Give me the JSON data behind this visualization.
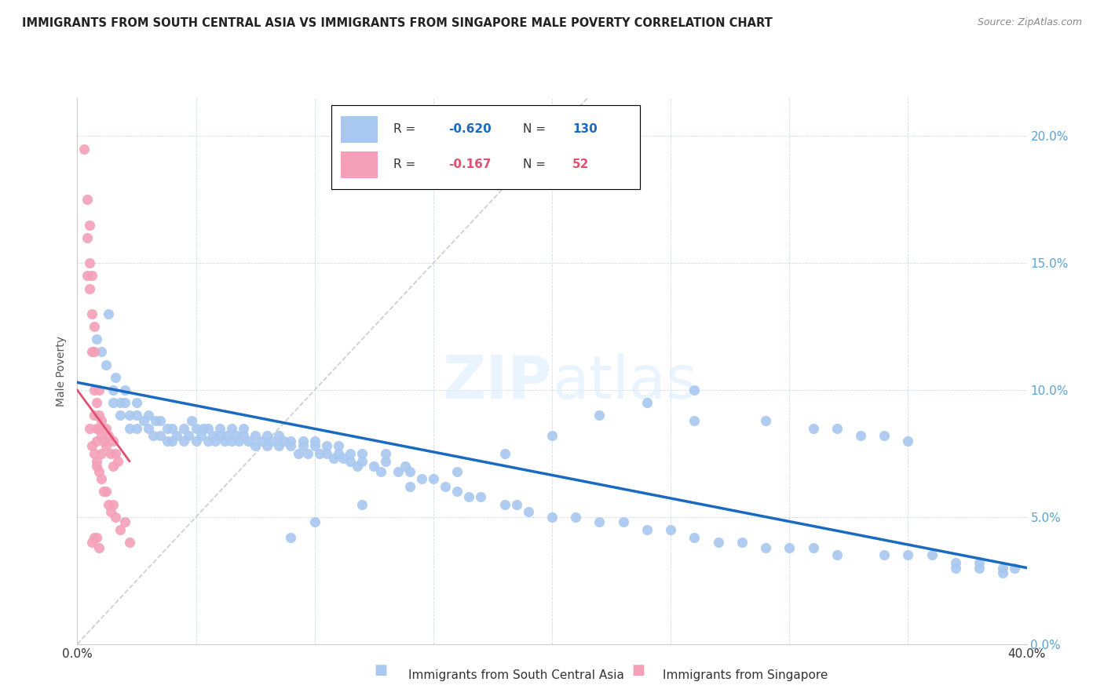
{
  "title": "IMMIGRANTS FROM SOUTH CENTRAL ASIA VS IMMIGRANTS FROM SINGAPORE MALE POVERTY CORRELATION CHART",
  "source": "Source: ZipAtlas.com",
  "ylabel": "Male Poverty",
  "ytick_labels": [
    "20.0%",
    "15.0%",
    "10.0%",
    "5.0%",
    "0.0%"
  ],
  "ytick_values": [
    0.2,
    0.15,
    0.1,
    0.05,
    0.0
  ],
  "xlim": [
    0.0,
    0.4
  ],
  "ylim": [
    0.0,
    0.215
  ],
  "legend_blue_R": "-0.620",
  "legend_blue_N": "130",
  "legend_pink_R": "-0.167",
  "legend_pink_N": "52",
  "blue_color": "#a8c8f0",
  "pink_color": "#f4a0b8",
  "blue_line_color": "#1a6abf",
  "pink_line_color": "#e05070",
  "diagonal_line_color": "#cccccc",
  "watermark_zip": "ZIP",
  "watermark_atlas": "atlas",
  "blue_scatter_x": [
    0.008,
    0.01,
    0.012,
    0.013,
    0.015,
    0.015,
    0.016,
    0.018,
    0.018,
    0.02,
    0.02,
    0.022,
    0.022,
    0.025,
    0.025,
    0.025,
    0.028,
    0.03,
    0.03,
    0.032,
    0.033,
    0.035,
    0.035,
    0.038,
    0.038,
    0.04,
    0.04,
    0.042,
    0.045,
    0.045,
    0.047,
    0.048,
    0.05,
    0.05,
    0.052,
    0.053,
    0.055,
    0.055,
    0.057,
    0.058,
    0.06,
    0.06,
    0.062,
    0.063,
    0.065,
    0.065,
    0.067,
    0.068,
    0.07,
    0.07,
    0.072,
    0.075,
    0.075,
    0.078,
    0.08,
    0.08,
    0.082,
    0.085,
    0.085,
    0.087,
    0.09,
    0.09,
    0.093,
    0.095,
    0.095,
    0.097,
    0.1,
    0.1,
    0.102,
    0.105,
    0.105,
    0.108,
    0.11,
    0.11,
    0.112,
    0.115,
    0.115,
    0.118,
    0.12,
    0.12,
    0.125,
    0.128,
    0.13,
    0.13,
    0.135,
    0.138,
    0.14,
    0.145,
    0.15,
    0.155,
    0.16,
    0.165,
    0.17,
    0.18,
    0.185,
    0.19,
    0.2,
    0.21,
    0.22,
    0.23,
    0.24,
    0.25,
    0.26,
    0.27,
    0.28,
    0.29,
    0.3,
    0.31,
    0.32,
    0.34,
    0.35,
    0.36,
    0.37,
    0.38,
    0.39,
    0.395,
    0.26,
    0.29,
    0.31,
    0.32,
    0.33,
    0.34,
    0.35,
    0.37,
    0.38,
    0.39,
    0.26,
    0.24,
    0.22,
    0.2,
    0.18,
    0.16,
    0.14,
    0.12,
    0.1,
    0.09
  ],
  "blue_scatter_y": [
    0.12,
    0.115,
    0.11,
    0.13,
    0.1,
    0.095,
    0.105,
    0.095,
    0.09,
    0.1,
    0.095,
    0.09,
    0.085,
    0.095,
    0.085,
    0.09,
    0.088,
    0.085,
    0.09,
    0.082,
    0.088,
    0.082,
    0.088,
    0.08,
    0.085,
    0.08,
    0.085,
    0.082,
    0.08,
    0.085,
    0.082,
    0.088,
    0.08,
    0.085,
    0.082,
    0.085,
    0.08,
    0.085,
    0.082,
    0.08,
    0.082,
    0.085,
    0.08,
    0.082,
    0.08,
    0.085,
    0.082,
    0.08,
    0.082,
    0.085,
    0.08,
    0.082,
    0.078,
    0.08,
    0.078,
    0.082,
    0.08,
    0.078,
    0.082,
    0.08,
    0.078,
    0.08,
    0.075,
    0.078,
    0.08,
    0.075,
    0.078,
    0.08,
    0.075,
    0.075,
    0.078,
    0.073,
    0.075,
    0.078,
    0.073,
    0.072,
    0.075,
    0.07,
    0.072,
    0.075,
    0.07,
    0.068,
    0.072,
    0.075,
    0.068,
    0.07,
    0.068,
    0.065,
    0.065,
    0.062,
    0.06,
    0.058,
    0.058,
    0.055,
    0.055,
    0.052,
    0.05,
    0.05,
    0.048,
    0.048,
    0.045,
    0.045,
    0.042,
    0.04,
    0.04,
    0.038,
    0.038,
    0.038,
    0.035,
    0.035,
    0.035,
    0.035,
    0.032,
    0.032,
    0.03,
    0.03,
    0.088,
    0.088,
    0.085,
    0.085,
    0.082,
    0.082,
    0.08,
    0.03,
    0.03,
    0.028,
    0.1,
    0.095,
    0.09,
    0.082,
    0.075,
    0.068,
    0.062,
    0.055,
    0.048,
    0.042
  ],
  "pink_scatter_x": [
    0.003,
    0.004,
    0.004,
    0.005,
    0.005,
    0.005,
    0.006,
    0.006,
    0.006,
    0.007,
    0.007,
    0.007,
    0.007,
    0.008,
    0.008,
    0.008,
    0.008,
    0.009,
    0.009,
    0.009,
    0.01,
    0.01,
    0.01,
    0.011,
    0.012,
    0.012,
    0.013,
    0.014,
    0.015,
    0.015,
    0.016,
    0.017,
    0.004,
    0.005,
    0.006,
    0.007,
    0.008,
    0.009,
    0.01,
    0.011,
    0.012,
    0.013,
    0.014,
    0.015,
    0.016,
    0.018,
    0.02,
    0.022,
    0.006,
    0.007,
    0.008,
    0.009
  ],
  "pink_scatter_y": [
    0.195,
    0.175,
    0.16,
    0.165,
    0.15,
    0.14,
    0.145,
    0.13,
    0.115,
    0.125,
    0.115,
    0.1,
    0.09,
    0.095,
    0.085,
    0.08,
    0.07,
    0.1,
    0.09,
    0.085,
    0.088,
    0.082,
    0.075,
    0.08,
    0.085,
    0.078,
    0.082,
    0.075,
    0.08,
    0.07,
    0.075,
    0.072,
    0.145,
    0.085,
    0.078,
    0.075,
    0.072,
    0.068,
    0.065,
    0.06,
    0.06,
    0.055,
    0.052,
    0.055,
    0.05,
    0.045,
    0.048,
    0.04,
    0.04,
    0.042,
    0.042,
    0.038
  ],
  "blue_line_x": [
    0.0,
    0.4
  ],
  "blue_line_y": [
    0.103,
    0.03
  ],
  "pink_line_x": [
    0.0,
    0.022
  ],
  "pink_line_y": [
    0.1,
    0.072
  ],
  "diag_line_x": [
    0.0,
    0.215
  ],
  "diag_line_y": [
    0.0,
    0.215
  ]
}
